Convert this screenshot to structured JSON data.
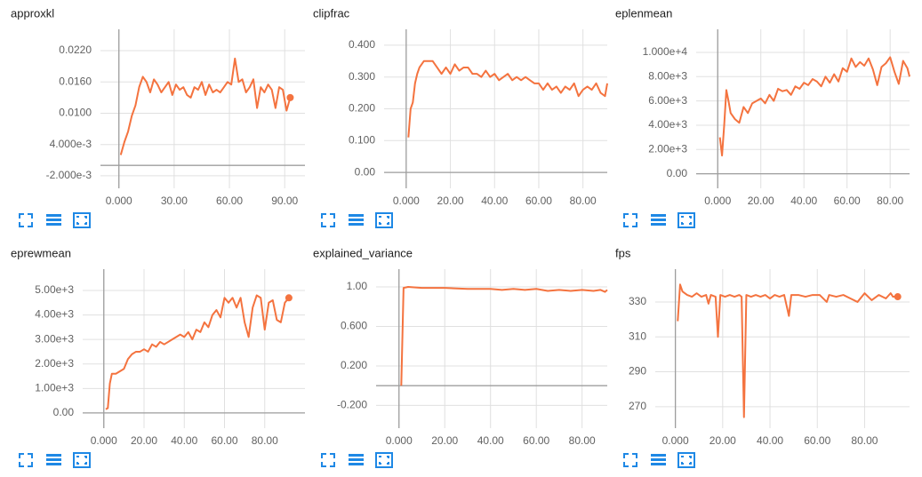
{
  "chart_data": [
    {
      "type": "line",
      "title": "approxkl",
      "color": "#f4733f",
      "grid": true,
      "marker_last": true,
      "x": [
        1,
        3,
        5,
        7,
        9,
        11,
        13,
        15,
        17,
        19,
        21,
        23,
        25,
        27,
        29,
        31,
        33,
        35,
        37,
        39,
        41,
        43,
        45,
        47,
        49,
        51,
        53,
        55,
        57,
        59,
        61,
        63,
        65,
        67,
        69,
        71,
        73,
        75,
        77,
        79,
        81,
        83,
        85,
        87,
        89,
        91,
        93
      ],
      "values": [
        0.002,
        0.0045,
        0.0065,
        0.0095,
        0.0115,
        0.015,
        0.017,
        0.016,
        0.014,
        0.0165,
        0.0155,
        0.014,
        0.015,
        0.016,
        0.0135,
        0.0155,
        0.0145,
        0.015,
        0.0135,
        0.013,
        0.015,
        0.0145,
        0.016,
        0.0135,
        0.0155,
        0.014,
        0.0145,
        0.014,
        0.015,
        0.016,
        0.0155,
        0.0205,
        0.016,
        0.0165,
        0.014,
        0.015,
        0.0165,
        0.011,
        0.015,
        0.014,
        0.0155,
        0.0145,
        0.011,
        0.015,
        0.0145,
        0.0105,
        0.013
      ],
      "xlim": [
        -10,
        101
      ],
      "ylim": [
        -0.0044,
        0.0261
      ],
      "xticks": [
        {
          "value": 0,
          "label": "0.000"
        },
        {
          "value": 30,
          "label": "30.00"
        },
        {
          "value": 60,
          "label": "60.00"
        },
        {
          "value": 90,
          "label": "90.00"
        }
      ],
      "yticks": [
        {
          "value": 0.022,
          "label": "0.0220"
        },
        {
          "value": 0.016,
          "label": "0.0160"
        },
        {
          "value": 0.01,
          "label": "0.0100"
        },
        {
          "value": 0.004,
          "label": "4.000e-3"
        },
        {
          "value": -0.002,
          "label": "-2.000e-3"
        }
      ]
    },
    {
      "type": "line",
      "title": "clipfrac",
      "color": "#f4733f",
      "grid": true,
      "marker_last": false,
      "x": [
        1,
        2,
        3,
        4,
        5,
        6,
        8,
        10,
        12,
        14,
        16,
        18,
        20,
        22,
        24,
        26,
        28,
        30,
        32,
        34,
        36,
        38,
        40,
        42,
        44,
        46,
        48,
        50,
        52,
        54,
        56,
        58,
        60,
        62,
        64,
        66,
        68,
        70,
        72,
        74,
        76,
        78,
        80,
        82,
        84,
        86,
        88,
        90,
        91
      ],
      "values": [
        0.11,
        0.2,
        0.22,
        0.28,
        0.31,
        0.33,
        0.35,
        0.35,
        0.35,
        0.33,
        0.31,
        0.33,
        0.31,
        0.34,
        0.32,
        0.33,
        0.33,
        0.31,
        0.31,
        0.3,
        0.32,
        0.3,
        0.31,
        0.29,
        0.3,
        0.31,
        0.29,
        0.3,
        0.29,
        0.3,
        0.29,
        0.28,
        0.28,
        0.26,
        0.28,
        0.26,
        0.27,
        0.25,
        0.27,
        0.26,
        0.28,
        0.24,
        0.26,
        0.27,
        0.26,
        0.28,
        0.25,
        0.24,
        0.28
      ],
      "xlim": [
        -10,
        91
      ],
      "ylim": [
        -0.05,
        0.45
      ],
      "xticks": [
        {
          "value": 0,
          "label": "0.000"
        },
        {
          "value": 20,
          "label": "20.00"
        },
        {
          "value": 40,
          "label": "40.00"
        },
        {
          "value": 60,
          "label": "60.00"
        },
        {
          "value": 80,
          "label": "80.00"
        }
      ],
      "yticks": [
        {
          "value": 0.4,
          "label": "0.400"
        },
        {
          "value": 0.3,
          "label": "0.300"
        },
        {
          "value": 0.2,
          "label": "0.200"
        },
        {
          "value": 0.1,
          "label": "0.100"
        },
        {
          "value": 0,
          "label": "0.00"
        }
      ]
    },
    {
      "type": "line",
      "title": "eplenmean",
      "color": "#f4733f",
      "grid": true,
      "marker_last": false,
      "x": [
        1,
        2,
        3,
        4,
        5,
        6,
        8,
        10,
        12,
        14,
        16,
        18,
        20,
        22,
        24,
        26,
        28,
        30,
        32,
        34,
        36,
        38,
        40,
        42,
        44,
        46,
        48,
        50,
        52,
        54,
        56,
        58,
        60,
        62,
        64,
        66,
        68,
        70,
        72,
        74,
        76,
        78,
        80,
        82,
        84,
        86,
        88,
        89
      ],
      "values": [
        3000,
        1500,
        4000,
        6900,
        6000,
        5000,
        4500,
        4200,
        5500,
        5000,
        5800,
        6000,
        6200,
        5800,
        6500,
        6000,
        7000,
        6800,
        6900,
        6500,
        7200,
        7000,
        7500,
        7300,
        7800,
        7600,
        7200,
        8000,
        7500,
        8200,
        7600,
        8700,
        8400,
        9500,
        8800,
        9200,
        8900,
        9500,
        8600,
        7300,
        8800,
        9100,
        9600,
        8400,
        7400,
        9300,
        8700,
        8000
      ],
      "xlim": [
        -10,
        89
      ],
      "ylim": [
        -1200,
        11900
      ],
      "xticks": [
        {
          "value": 0,
          "label": "0.000"
        },
        {
          "value": 20,
          "label": "20.00"
        },
        {
          "value": 40,
          "label": "40.00"
        },
        {
          "value": 60,
          "label": "60.00"
        },
        {
          "value": 80,
          "label": "80.00"
        }
      ],
      "yticks": [
        {
          "value": 10000,
          "label": "1.000e+4"
        },
        {
          "value": 8000,
          "label": "8.00e+3"
        },
        {
          "value": 6000,
          "label": "6.00e+3"
        },
        {
          "value": 4000,
          "label": "4.00e+3"
        },
        {
          "value": 2000,
          "label": "2.00e+3"
        },
        {
          "value": 0,
          "label": "0.00"
        }
      ]
    },
    {
      "type": "line",
      "title": "eprewmean",
      "color": "#f4733f",
      "grid": true,
      "marker_last": true,
      "x": [
        1,
        2,
        3,
        4,
        6,
        8,
        10,
        12,
        14,
        16,
        18,
        20,
        22,
        24,
        26,
        28,
        30,
        32,
        34,
        36,
        38,
        40,
        42,
        44,
        46,
        48,
        50,
        52,
        54,
        56,
        58,
        60,
        62,
        64,
        66,
        68,
        70,
        72,
        74,
        76,
        78,
        80,
        82,
        84,
        86,
        88,
        90,
        92
      ],
      "values": [
        150,
        200,
        1200,
        1600,
        1600,
        1700,
        1800,
        2200,
        2400,
        2500,
        2500,
        2600,
        2500,
        2800,
        2700,
        2900,
        2800,
        2900,
        3000,
        3100,
        3200,
        3100,
        3300,
        3000,
        3400,
        3300,
        3700,
        3500,
        4000,
        4200,
        3900,
        4700,
        4500,
        4700,
        4300,
        4700,
        3700,
        3100,
        4300,
        4800,
        4700,
        3400,
        4500,
        4600,
        3800,
        3700,
        4500,
        4700
      ],
      "xlim": [
        -10.5,
        100
      ],
      "ylim": [
        -620,
        5870
      ],
      "xticks": [
        {
          "value": 0,
          "label": "0.000"
        },
        {
          "value": 20,
          "label": "20.00"
        },
        {
          "value": 40,
          "label": "40.00"
        },
        {
          "value": 60,
          "label": "60.00"
        },
        {
          "value": 80,
          "label": "80.00"
        }
      ],
      "yticks": [
        {
          "value": 5000,
          "label": "5.00e+3"
        },
        {
          "value": 4000,
          "label": "4.00e+3"
        },
        {
          "value": 3000,
          "label": "3.00e+3"
        },
        {
          "value": 2000,
          "label": "2.00e+3"
        },
        {
          "value": 1000,
          "label": "1.00e+3"
        },
        {
          "value": 0,
          "label": "0.00"
        }
      ]
    },
    {
      "type": "line",
      "title": "explained_variance",
      "color": "#f4733f",
      "grid": true,
      "marker_last": false,
      "x": [
        1,
        2,
        4,
        10,
        20,
        30,
        40,
        45,
        50,
        55,
        60,
        65,
        70,
        75,
        80,
        85,
        88,
        90,
        91
      ],
      "values": [
        0.0,
        0.99,
        1.0,
        0.99,
        0.99,
        0.98,
        0.98,
        0.97,
        0.98,
        0.97,
        0.98,
        0.96,
        0.97,
        0.96,
        0.97,
        0.96,
        0.97,
        0.95,
        0.97
      ],
      "xlim": [
        -10,
        91
      ],
      "ylim": [
        -0.43,
        1.18
      ],
      "xticks": [
        {
          "value": 0,
          "label": "0.000"
        },
        {
          "value": 20,
          "label": "20.00"
        },
        {
          "value": 40,
          "label": "40.00"
        },
        {
          "value": 60,
          "label": "60.00"
        },
        {
          "value": 80,
          "label": "80.00"
        }
      ],
      "yticks": [
        {
          "value": 1,
          "label": "1.00"
        },
        {
          "value": 0.6,
          "label": "0.600"
        },
        {
          "value": 0.2,
          "label": "0.200"
        },
        {
          "value": -0.2,
          "label": "-0.200"
        }
      ]
    },
    {
      "type": "line",
      "title": "fps",
      "color": "#f4733f",
      "grid": true,
      "marker_last": true,
      "x": [
        1,
        2,
        3,
        5,
        7,
        9,
        11,
        13,
        14,
        15,
        17,
        18,
        19,
        21,
        23,
        25,
        27,
        28,
        29,
        30,
        32,
        34,
        36,
        38,
        40,
        42,
        44,
        46,
        48,
        49,
        52,
        55,
        58,
        61,
        64,
        65,
        68,
        71,
        74,
        77,
        80,
        83,
        86,
        89,
        91,
        92,
        94
      ],
      "values": [
        319,
        340,
        336,
        334,
        333,
        335,
        333,
        334,
        329,
        334,
        333,
        310,
        334,
        333,
        334,
        333,
        334,
        333,
        264,
        334,
        333,
        334,
        333,
        334,
        332,
        334,
        333,
        334,
        322,
        334,
        334,
        333,
        334,
        334,
        330,
        334,
        333,
        334,
        332,
        330,
        335,
        331,
        334,
        332,
        335,
        333,
        333
      ],
      "xlim": [
        -8.5,
        99
      ],
      "ylim": [
        257.7,
        348.8
      ],
      "xticks": [
        {
          "value": 0,
          "label": "0.000"
        },
        {
          "value": 20,
          "label": "20.00"
        },
        {
          "value": 40,
          "label": "40.00"
        },
        {
          "value": 60,
          "label": "60.00"
        },
        {
          "value": 80,
          "label": "80.00"
        }
      ],
      "yticks": [
        330,
        310,
        290,
        270
      ]
    }
  ]
}
